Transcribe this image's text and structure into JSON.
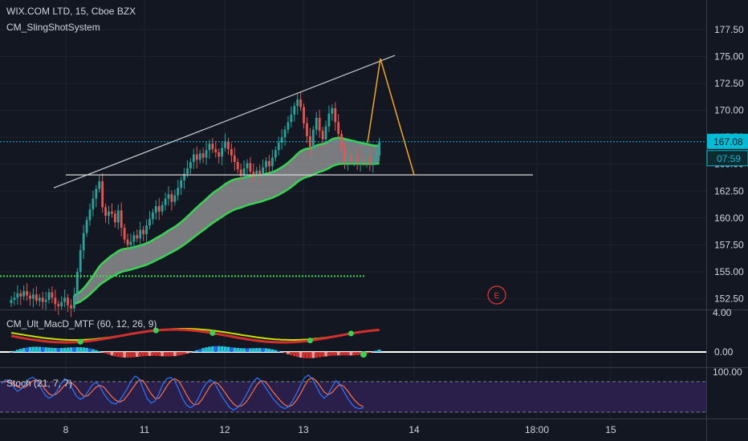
{
  "header": {
    "symbol": "WIX.COM LTD, 15, Cboe BZX",
    "indicator": "CM_SlingShotSystem"
  },
  "macd_pane": {
    "label": "CM_Ult_MacD_MTF (60, 12, 26, 9)"
  },
  "stoch_pane": {
    "label": "Stoch (21, 7, 7)"
  },
  "colors": {
    "background": "#131722",
    "grid": "#1e2330",
    "text": "#d1d4dc",
    "up": "#26a69a",
    "down": "#ef5350",
    "ema_band": "#39d353",
    "band_fill": "#9e9e9e",
    "price_line": "#00bcd4",
    "projection": "#f5a623",
    "stoch_bg": "#2a1e4a"
  },
  "price_label": {
    "value": "167.08",
    "countdown": "07:59"
  },
  "event_marker": "E",
  "chart_data": [
    {
      "type": "candlestick",
      "ylim": [
        151.5,
        179.5
      ],
      "y_ticks": [
        "177.50",
        "175.00",
        "172.50",
        "170.00",
        "167.50",
        "165.00",
        "162.50",
        "160.00",
        "157.50",
        "155.00",
        "152.50"
      ],
      "x_ticks": [
        "8",
        "11",
        "12",
        "13",
        "14",
        "18:00",
        "15"
      ],
      "last_price": 167.08,
      "support_level": 164.0,
      "green_dotted_level": 154.6,
      "trendline": [
        {
          "x": "7",
          "y": 162.8
        },
        {
          "x": "14",
          "y": 175.1
        }
      ],
      "projection": [
        {
          "x": "13",
          "y": 167.0
        },
        {
          "x": "13.5",
          "y": 174.8
        },
        {
          "x": "14",
          "y": 164.0
        }
      ],
      "close": [
        152.4,
        152.6,
        153.0,
        152.7,
        153.2,
        152.8,
        152.5,
        152.9,
        152.3,
        152.6,
        152.2,
        152.4,
        153.1,
        152.6,
        152.0,
        151.8,
        152.2,
        152.6,
        151.9,
        151.6,
        152.8,
        155.0,
        157.0,
        158.6,
        159.8,
        160.8,
        161.8,
        162.7,
        163.4,
        161.0,
        160.2,
        160.6,
        160.4,
        159.6,
        160.7,
        159.1,
        158.0,
        157.5,
        157.8,
        158.4,
        158.1,
        158.9,
        158.5,
        159.3,
        159.9,
        160.5,
        161.1,
        160.6,
        161.2,
        161.8,
        162.2,
        161.5,
        162.1,
        162.8,
        163.5,
        164.1,
        164.6,
        165.2,
        165.9,
        165.4,
        166.0,
        165.6,
        166.3,
        166.9,
        166.4,
        166.1,
        165.7,
        166.5,
        167.1,
        166.4,
        165.8,
        165.2,
        164.5,
        163.9,
        164.6,
        165.1,
        164.3,
        163.8,
        164.4,
        163.9,
        164.7,
        165.3,
        164.8,
        165.6,
        166.3,
        167.0,
        167.5,
        168.2,
        168.9,
        169.6,
        170.4,
        171.0,
        170.3,
        168.8,
        167.6,
        166.6,
        168.2,
        169.3,
        168.1,
        167.3,
        168.5,
        169.7,
        170.2,
        168.9,
        167.8,
        166.6,
        165.2,
        165.8,
        165.3,
        165.7,
        165.1,
        165.4,
        165.2,
        165.6,
        165.0,
        165.3,
        165.8,
        167.08
      ]
    },
    {
      "type": "histogram",
      "reference": "0.00",
      "y_ticks": [
        "4.00",
        "0.00"
      ]
    },
    {
      "type": "line",
      "name": "Stoch (21, 7, 7)",
      "y_ticks": [
        "100.00"
      ],
      "k": [
        72,
        80,
        78,
        65,
        55,
        60,
        70,
        82,
        85,
        78,
        62,
        48,
        40,
        45,
        55,
        70,
        82,
        75,
        60,
        45,
        38,
        42,
        55,
        68,
        75,
        65,
        50,
        38,
        30,
        28,
        35,
        48,
        62,
        78,
        88,
        82,
        60,
        40,
        30,
        34,
        50,
        70,
        82,
        85,
        78,
        60,
        40,
        26,
        20,
        25,
        40,
        58,
        72,
        80,
        75,
        60,
        45,
        32,
        20,
        15,
        20,
        30,
        44,
        60,
        76,
        84,
        78,
        65,
        52,
        40,
        30,
        22,
        18,
        22,
        35,
        50,
        68,
        84,
        90,
        82,
        66,
        50,
        40,
        48,
        64,
        78,
        70,
        55,
        40,
        28,
        20,
        18,
        20
      ],
      "d": [
        74,
        76,
        77,
        72,
        65,
        62,
        64,
        72,
        78,
        80,
        72,
        60,
        50,
        46,
        50,
        58,
        68,
        74,
        72,
        64,
        52,
        44,
        46,
        55,
        64,
        68,
        64,
        54,
        44,
        36,
        32,
        36,
        46,
        58,
        70,
        80,
        78,
        64,
        50,
        40,
        40,
        52,
        66,
        78,
        82,
        78,
        64,
        48,
        34,
        26,
        28,
        38,
        52,
        66,
        74,
        72,
        62,
        50,
        38,
        28,
        22,
        24,
        30,
        42,
        56,
        70,
        78,
        76,
        66,
        54,
        44,
        34,
        26,
        22,
        26,
        36,
        50,
        66,
        80,
        84,
        78,
        66,
        54,
        48,
        52,
        62,
        70,
        66,
        56,
        44,
        34,
        26,
        22
      ]
    }
  ]
}
